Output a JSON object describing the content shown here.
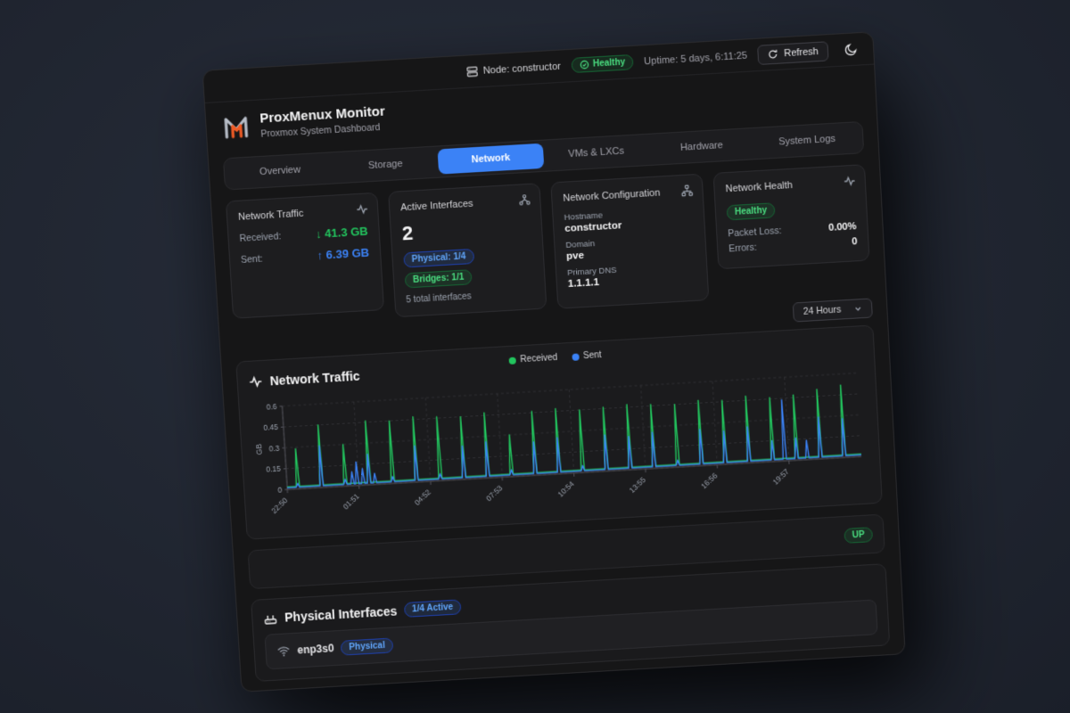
{
  "topbar": {
    "node": "Node: constructor",
    "health": "Healthy",
    "uptime": "Uptime: 5 days, 6:11:25",
    "refresh": "Refresh"
  },
  "header": {
    "title": "ProxMenux Monitor",
    "subtitle": "Proxmox System Dashboard"
  },
  "tabs": [
    {
      "label": "Overview"
    },
    {
      "label": "Storage"
    },
    {
      "label": "Network"
    },
    {
      "label": "VMs & LXCs"
    },
    {
      "label": "Hardware"
    },
    {
      "label": "System Logs"
    }
  ],
  "active_tab": "Network",
  "cards": {
    "traffic": {
      "title": "Network Traffic",
      "received_label": "Received:",
      "received_arrow": "↓",
      "received_value": "41.3 GB",
      "sent_label": "Sent:",
      "sent_arrow": "↑",
      "sent_value": "6.39 GB"
    },
    "interfaces": {
      "title": "Active Interfaces",
      "count": "2",
      "physical_badge": "Physical: 1/4",
      "bridges_badge": "Bridges: 1/1",
      "total": "5 total interfaces"
    },
    "config": {
      "title": "Network Configuration",
      "fields": [
        {
          "label": "Hostname",
          "value": "constructor"
        },
        {
          "label": "Domain",
          "value": "pve"
        },
        {
          "label": "Primary DNS",
          "value": "1.1.1.1"
        }
      ]
    },
    "health": {
      "title": "Network Health",
      "status": "Healthy",
      "rows": [
        {
          "label": "Packet Loss:",
          "value": "0.00%"
        },
        {
          "label": "Errors:",
          "value": "0"
        }
      ]
    }
  },
  "time_range": {
    "selected": "24 Hours"
  },
  "chart_data": {
    "type": "line",
    "title": "Network Traffic",
    "ylabel": "GB",
    "ylim": [
      0,
      0.6
    ],
    "y_ticks": [
      0,
      0.15,
      0.3,
      0.45,
      0.6
    ],
    "x_labels": [
      "22:50",
      "01:51",
      "04:52",
      "07:53",
      "10:54",
      "13:55",
      "16:56",
      "19:57"
    ],
    "x_label_hours": [
      0,
      3.02,
      6.03,
      9.05,
      12.07,
      15.08,
      18.1,
      21.12
    ],
    "x_span_hours": 24.17,
    "legend": [
      "Received",
      "Sent"
    ],
    "grid": "dashed",
    "legend_position": "top-center",
    "series": [
      {
        "name": "Received",
        "color": "#22c55e",
        "baseline": 0.018,
        "spikes": [
          [
            0.45,
            0.29
          ],
          [
            1.45,
            0.45
          ],
          [
            2.45,
            0.3
          ],
          [
            3.45,
            0.46
          ],
          [
            4.45,
            0.45
          ],
          [
            5.45,
            0.47
          ],
          [
            6.45,
            0.46
          ],
          [
            7.45,
            0.45
          ],
          [
            8.45,
            0.47
          ],
          [
            9.45,
            0.3
          ],
          [
            10.45,
            0.46
          ],
          [
            11.45,
            0.47
          ],
          [
            12.45,
            0.45
          ],
          [
            13.45,
            0.46
          ],
          [
            14.45,
            0.47
          ],
          [
            15.45,
            0.46
          ],
          [
            16.45,
            0.45
          ],
          [
            17.45,
            0.47
          ],
          [
            18.45,
            0.46
          ],
          [
            19.45,
            0.48
          ],
          [
            20.45,
            0.46
          ],
          [
            21.45,
            0.47
          ],
          [
            22.45,
            0.5
          ],
          [
            23.45,
            0.52
          ]
        ]
      },
      {
        "name": "Sent",
        "color": "#3b82f6",
        "baseline": 0.012,
        "spikes": [
          [
            0.45,
            0.04
          ],
          [
            1.45,
            0.3
          ],
          [
            2.45,
            0.05
          ],
          [
            2.75,
            0.1
          ],
          [
            2.95,
            0.17
          ],
          [
            3.2,
            0.12
          ],
          [
            3.45,
            0.22
          ],
          [
            3.7,
            0.08
          ],
          [
            4.45,
            0.05
          ],
          [
            5.45,
            0.26
          ],
          [
            6.45,
            0.05
          ],
          [
            7.45,
            0.24
          ],
          [
            8.45,
            0.26
          ],
          [
            9.45,
            0.05
          ],
          [
            10.45,
            0.24
          ],
          [
            11.45,
            0.26
          ],
          [
            12.45,
            0.05
          ],
          [
            13.45,
            0.26
          ],
          [
            14.45,
            0.24
          ],
          [
            15.45,
            0.26
          ],
          [
            16.45,
            0.05
          ],
          [
            17.45,
            0.26
          ],
          [
            18.45,
            0.24
          ],
          [
            19.45,
            0.26
          ],
          [
            20.45,
            0.15
          ],
          [
            20.95,
            0.44
          ],
          [
            21.45,
            0.16
          ],
          [
            21.9,
            0.14
          ],
          [
            22.45,
            0.3
          ],
          [
            23.45,
            0.28
          ]
        ]
      }
    ]
  },
  "up_row": {
    "status": "UP"
  },
  "physical": {
    "title": "Physical Interfaces",
    "badge": "1/4 Active",
    "interfaces": [
      {
        "name": "enp3s0",
        "type": "Physical"
      }
    ]
  },
  "colors": {
    "accent_blue": "#3b82f6",
    "green": "#22c55e",
    "logo_orange": "#ef5b25",
    "panel_bg": "#161617",
    "card_bg": "#1d1d1f"
  }
}
